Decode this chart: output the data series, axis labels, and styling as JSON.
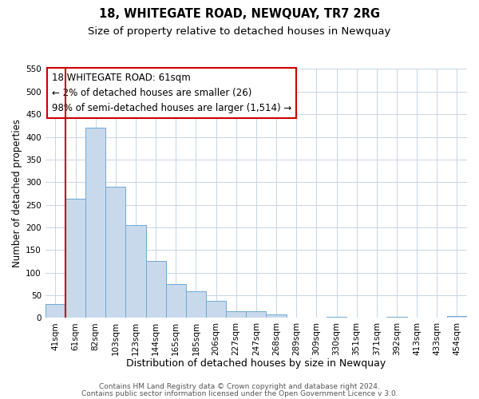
{
  "title": "18, WHITEGATE ROAD, NEWQUAY, TR7 2RG",
  "subtitle": "Size of property relative to detached houses in Newquay",
  "xlabel": "Distribution of detached houses by size in Newquay",
  "ylabel": "Number of detached properties",
  "bar_labels": [
    "41sqm",
    "61sqm",
    "82sqm",
    "103sqm",
    "123sqm",
    "144sqm",
    "165sqm",
    "185sqm",
    "206sqm",
    "227sqm",
    "247sqm",
    "268sqm",
    "289sqm",
    "309sqm",
    "330sqm",
    "351sqm",
    "371sqm",
    "392sqm",
    "413sqm",
    "433sqm",
    "454sqm"
  ],
  "bar_heights": [
    30,
    263,
    420,
    289,
    206,
    126,
    75,
    58,
    38,
    15,
    15,
    8,
    0,
    0,
    3,
    0,
    0,
    2,
    0,
    0,
    4
  ],
  "bar_color": "#c8d9ec",
  "bar_edge_color": "#6fa8d4",
  "highlight_bar_index": 1,
  "highlight_color": "#cc0000",
  "annotation_title": "18 WHITEGATE ROAD: 61sqm",
  "annotation_line1": "← 2% of detached houses are smaller (26)",
  "annotation_line2": "98% of semi-detached houses are larger (1,514) →",
  "annotation_box_color": "#ffffff",
  "annotation_box_edge": "#cc0000",
  "ylim": [
    0,
    550
  ],
  "yticks": [
    0,
    50,
    100,
    150,
    200,
    250,
    300,
    350,
    400,
    450,
    500,
    550
  ],
  "footer1": "Contains HM Land Registry data © Crown copyright and database right 2024.",
  "footer2": "Contains public sector information licensed under the Open Government Licence v 3.0.",
  "background_color": "#ffffff",
  "grid_color": "#c8d4e4",
  "title_fontsize": 10.5,
  "subtitle_fontsize": 9.5,
  "xlabel_fontsize": 9,
  "ylabel_fontsize": 8.5,
  "tick_fontsize": 7.5,
  "annotation_fontsize": 8.5,
  "footer_fontsize": 6.5
}
